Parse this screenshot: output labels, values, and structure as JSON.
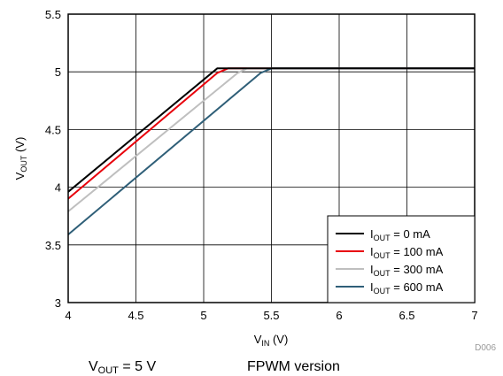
{
  "chart_data": {
    "type": "line",
    "xlabel": {
      "main": "V",
      "sub": "IN",
      "unit": " (V)"
    },
    "ylabel": {
      "main": "V",
      "sub": "OUT",
      "unit": " (V)"
    },
    "xlim": [
      4,
      7
    ],
    "ylim": [
      3,
      5.5
    ],
    "xticks": [
      "4",
      "4.5",
      "5",
      "5.5",
      "6",
      "6.5",
      "7"
    ],
    "yticks": [
      "3",
      "3.5",
      "4",
      "4.5",
      "5",
      "5.5"
    ],
    "grid": true,
    "legend_position": "bottom-right",
    "series": [
      {
        "name_main": "I",
        "name_sub": "OUT",
        "name_rest": " = 0 mA",
        "color": "#000000",
        "x": [
          4,
          5.1,
          7
        ],
        "y": [
          3.96,
          5.03,
          5.03
        ]
      },
      {
        "name_main": "I",
        "name_sub": "OUT",
        "name_rest": " = 100 mA",
        "color": "#e8000b",
        "x": [
          4,
          5.1,
          5.18,
          7
        ],
        "y": [
          3.9,
          4.99,
          5.03,
          5.03
        ]
      },
      {
        "name_main": "I",
        "name_sub": "OUT",
        "name_rest": " = 300 mA",
        "color": "#bfbfbf",
        "x": [
          4,
          5.25,
          5.32,
          7
        ],
        "y": [
          3.79,
          4.99,
          5.03,
          5.03
        ]
      },
      {
        "name_main": "I",
        "name_sub": "OUT",
        "name_rest": " = 600 mA",
        "color": "#2f5f78",
        "x": [
          4,
          5.42,
          5.5,
          7
        ],
        "y": [
          3.59,
          4.99,
          5.03,
          5.03
        ]
      }
    ],
    "figure_code": "D006"
  },
  "caption": {
    "left": {
      "main": "V",
      "sub": "OUT",
      "rest": " = 5 V"
    },
    "right": "FPWM version"
  }
}
